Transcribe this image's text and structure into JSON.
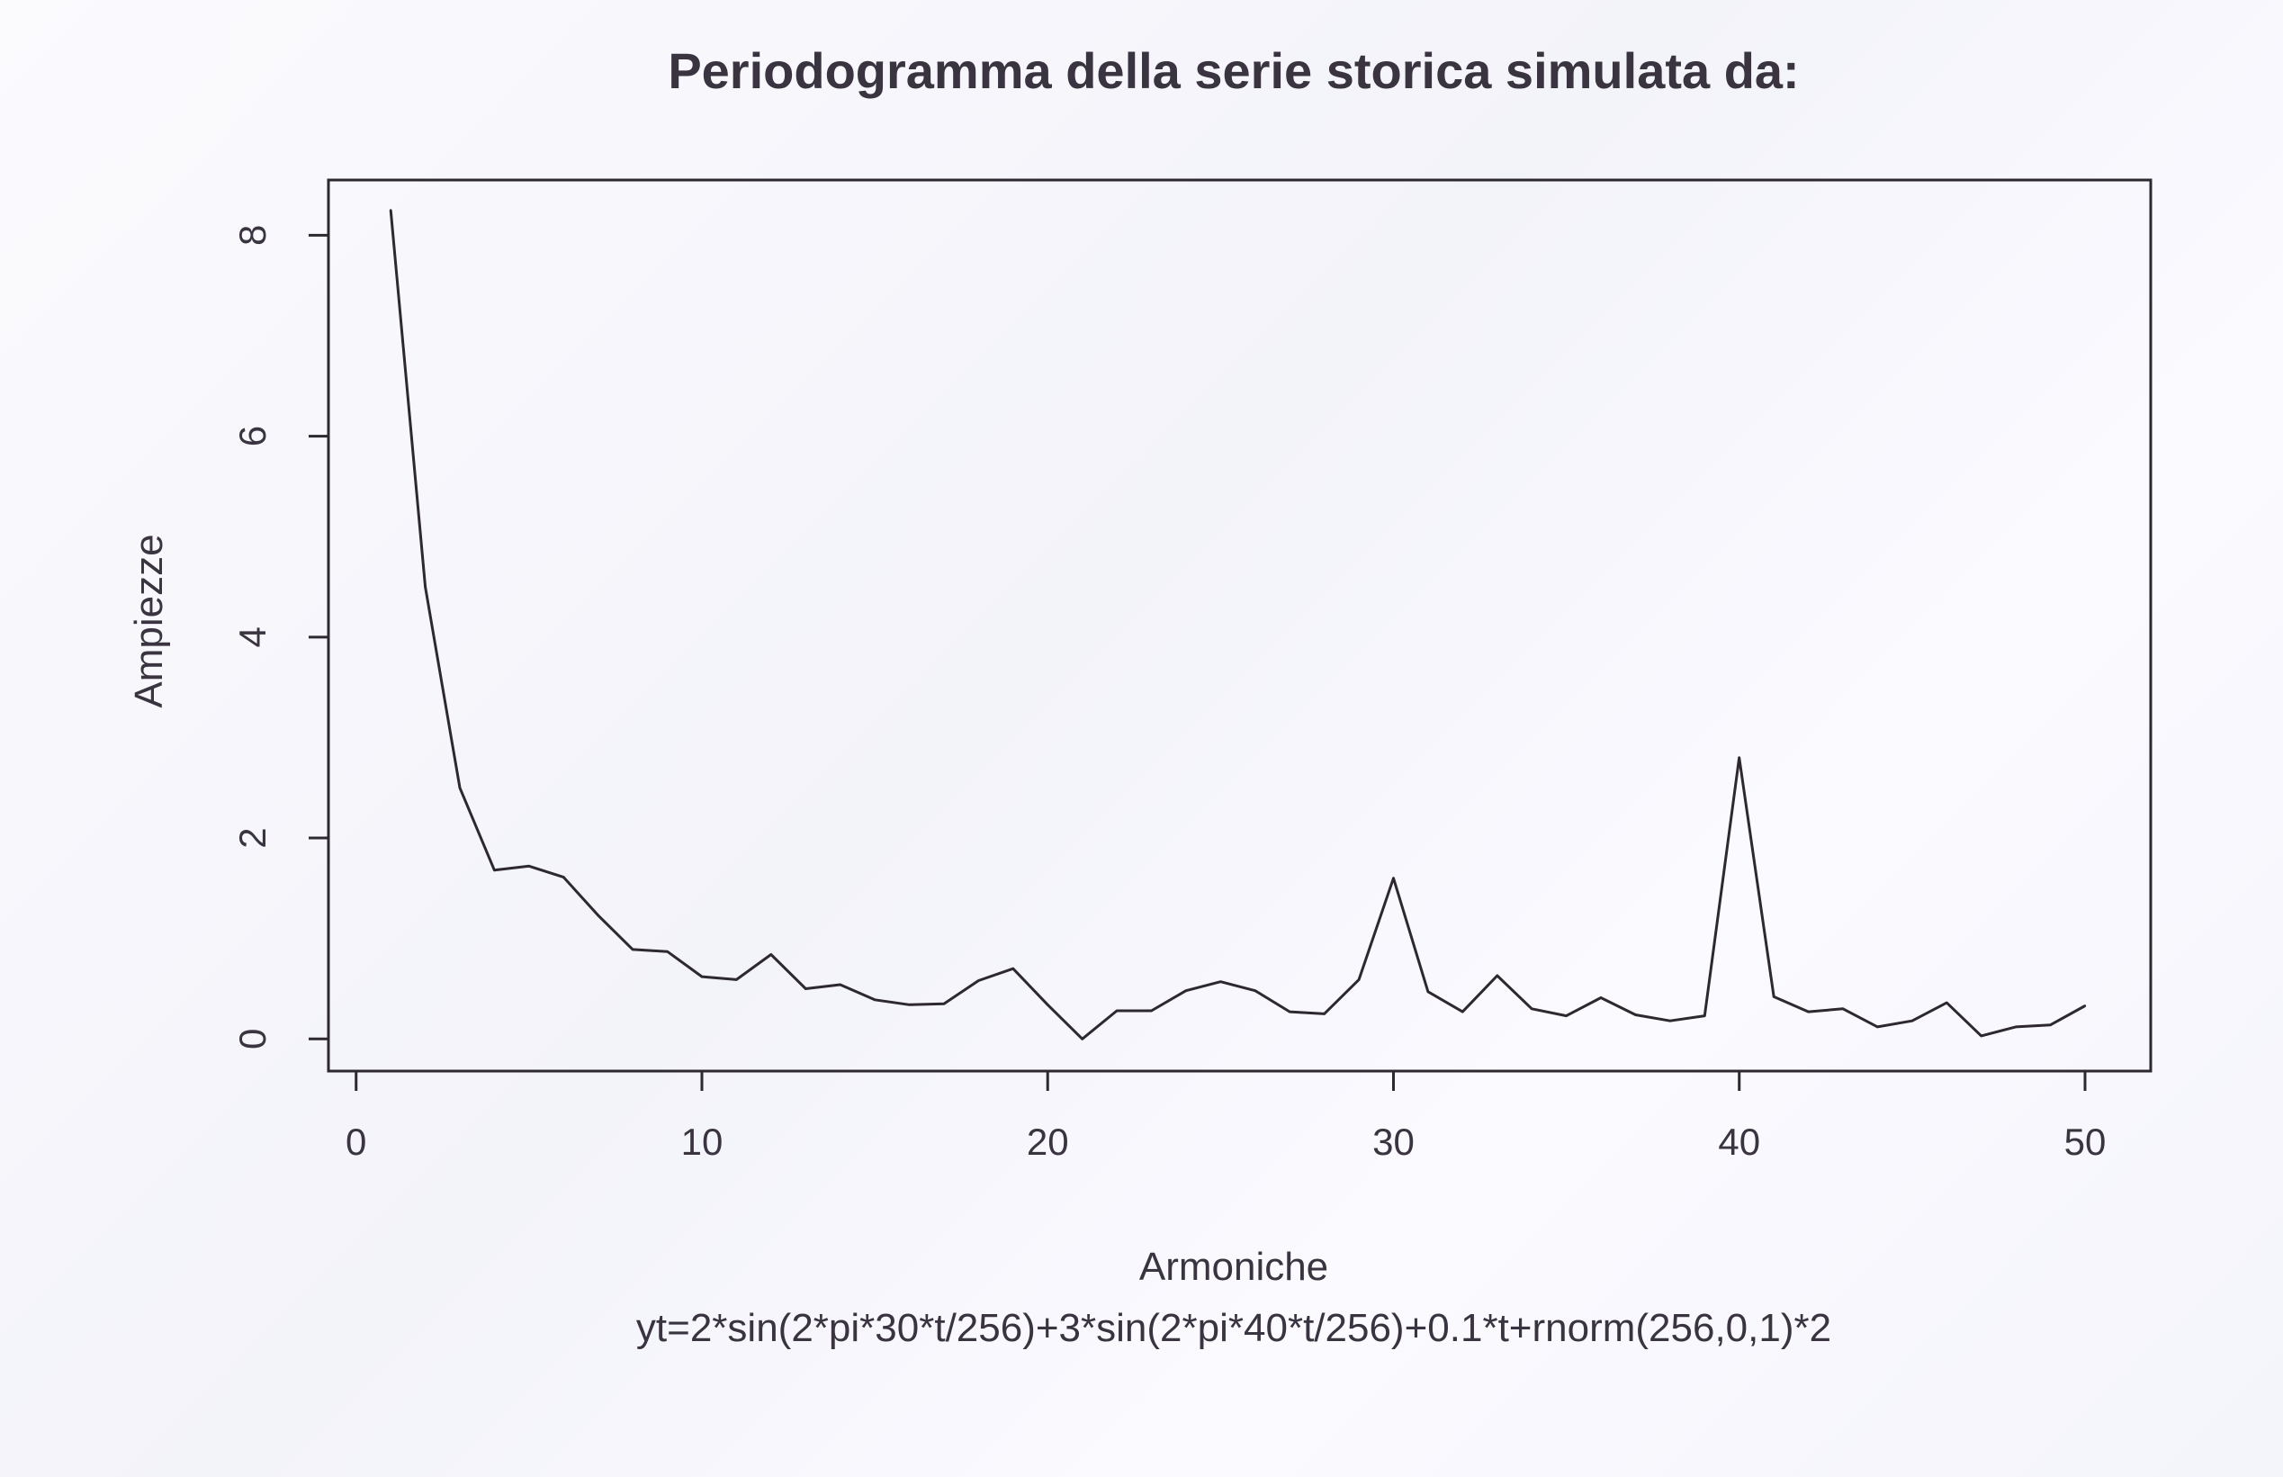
{
  "chart_data": {
    "type": "line",
    "title": "Periodogramma della serie storica simulata da:",
    "xlabel": "Armoniche",
    "subtitle": "yt=2*sin(2*pi*30*t/256)+3*sin(2*pi*40*t/256)+0.1*t+rnorm(256,0,1)*2",
    "ylabel": "Ampiezze",
    "xlim": [
      -0.8,
      51.9
    ],
    "ylim": [
      -0.32,
      8.55
    ],
    "x_ticks": [
      0,
      10,
      20,
      30,
      40,
      50
    ],
    "y_ticks": [
      0,
      2,
      4,
      6,
      8
    ],
    "grid": false,
    "line_color": "#2e2830",
    "x": [
      1,
      2,
      3,
      4,
      5,
      6,
      7,
      8,
      9,
      10,
      11,
      12,
      13,
      14,
      15,
      16,
      17,
      18,
      19,
      20,
      21,
      22,
      23,
      24,
      25,
      26,
      27,
      28,
      29,
      30,
      31,
      32,
      33,
      34,
      35,
      36,
      37,
      38,
      39,
      40,
      41,
      42,
      43,
      44,
      45,
      46,
      47,
      48,
      49,
      50
    ],
    "y": [
      8.25,
      4.5,
      2.5,
      1.68,
      1.72,
      1.61,
      1.23,
      0.89,
      0.87,
      0.62,
      0.59,
      0.84,
      0.5,
      0.54,
      0.39,
      0.34,
      0.35,
      0.58,
      0.7,
      0.34,
      0.0,
      0.28,
      0.28,
      0.48,
      0.57,
      0.48,
      0.27,
      0.25,
      0.59,
      1.6,
      0.47,
      0.27,
      0.63,
      0.3,
      0.23,
      0.41,
      0.24,
      0.18,
      0.23,
      2.8,
      0.42,
      0.27,
      0.3,
      0.12,
      0.18,
      0.36,
      0.03,
      0.12,
      0.14,
      0.33
    ]
  }
}
